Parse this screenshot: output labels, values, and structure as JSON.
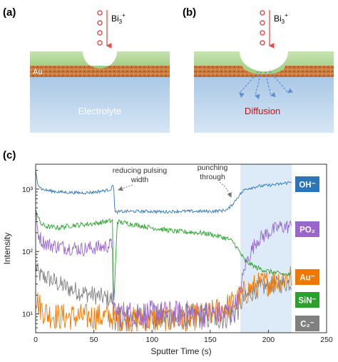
{
  "panels": {
    "a": {
      "label": "(a)",
      "ion_label": "Bi",
      "ion_sub": "3",
      "ion_sup": "+",
      "layer_label": "Au",
      "electrolyte_label": "Electrolyte"
    },
    "b": {
      "label": "(b)",
      "ion_label": "Bi",
      "ion_sub": "3",
      "ion_sup": "+",
      "diffusion_label": "Diffusion"
    },
    "c": {
      "label": "(c)"
    }
  },
  "colors": {
    "green_layer": "#a9d18e",
    "gold_layer": "#c8753a",
    "electrolyte": "#b8d3ec",
    "ion": "#e05050",
    "diffusion_text": "#d01010",
    "arrow": "#5b8fd0",
    "shade": "#dcebf7"
  },
  "chart_data": {
    "type": "line",
    "xlabel": "Sputter Time (s)",
    "ylabel": "Intensity",
    "xlim": [
      0,
      250
    ],
    "ylim": [
      5,
      2500
    ],
    "yscale": "log",
    "x_ticks": [
      "0",
      "50",
      "100",
      "150",
      "200",
      "250"
    ],
    "y_ticks": [
      "10¹",
      "10²",
      "10³"
    ],
    "shaded_region": [
      176,
      220
    ],
    "annotations": [
      {
        "text": "reducing pulsing",
        "text2": "width",
        "x": 67,
        "y": 1200
      },
      {
        "text": "punching",
        "text2": "through",
        "x": 170,
        "y": 1000
      }
    ],
    "series": [
      {
        "name": "OH⁻",
        "color": "#2e75b6",
        "x": [
          0,
          2,
          5,
          10,
          20,
          30,
          40,
          50,
          60,
          65,
          67,
          68,
          70,
          80,
          90,
          100,
          110,
          120,
          130,
          140,
          150,
          160,
          165,
          170,
          175,
          180,
          190,
          200,
          210,
          220
        ],
        "y": [
          2000,
          1200,
          1000,
          950,
          900,
          880,
          870,
          890,
          950,
          1000,
          1250,
          420,
          430,
          440,
          440,
          440,
          430,
          440,
          440,
          440,
          440,
          450,
          470,
          600,
          800,
          1000,
          1100,
          1150,
          1200,
          1300
        ]
      },
      {
        "name": "PO₂",
        "color": "#9966cc",
        "x": [
          0,
          2,
          5,
          10,
          20,
          30,
          40,
          50,
          60,
          66,
          67,
          68,
          80,
          100,
          120,
          140,
          160,
          170,
          175,
          180,
          185,
          190,
          200,
          210,
          220
        ],
        "y": [
          400,
          200,
          150,
          130,
          120,
          115,
          110,
          115,
          120,
          130,
          8,
          10,
          10,
          10,
          10,
          10,
          10,
          11,
          20,
          60,
          100,
          150,
          200,
          250,
          250
        ]
      },
      {
        "name": "Au⁻",
        "color": "#f07800",
        "x": [
          0,
          2,
          5,
          10,
          20,
          30,
          40,
          50,
          60,
          66,
          67,
          80,
          100,
          120,
          140,
          150,
          160,
          170,
          180,
          190,
          200,
          210,
          220
        ],
        "y": [
          20,
          15,
          12,
          10,
          9,
          9,
          9,
          9,
          9,
          9,
          8,
          8,
          8,
          8,
          9,
          10,
          12,
          15,
          22,
          28,
          32,
          36,
          40
        ]
      },
      {
        "name": "SiN⁻",
        "color": "#2ca02c",
        "x": [
          0,
          2,
          5,
          10,
          20,
          30,
          40,
          50,
          60,
          66,
          67,
          70,
          80,
          100,
          120,
          140,
          150,
          160,
          165,
          170,
          175,
          180,
          190,
          200,
          210,
          220
        ],
        "y": [
          500,
          350,
          270,
          250,
          240,
          260,
          270,
          280,
          300,
          310,
          10,
          300,
          280,
          240,
          210,
          200,
          190,
          170,
          160,
          140,
          100,
          70,
          55,
          48,
          44,
          42
        ]
      },
      {
        "name": "C₂⁻",
        "color": "#808080",
        "x": [
          0,
          2,
          5,
          10,
          20,
          30,
          40,
          50,
          60,
          66,
          67,
          80,
          100,
          120,
          140,
          160,
          170,
          180,
          190,
          200,
          210,
          220
        ],
        "y": [
          60,
          45,
          40,
          38,
          30,
          25,
          22,
          20,
          18,
          17,
          9,
          9,
          9,
          9,
          9,
          9,
          10,
          18,
          25,
          28,
          30,
          32
        ]
      }
    ]
  }
}
